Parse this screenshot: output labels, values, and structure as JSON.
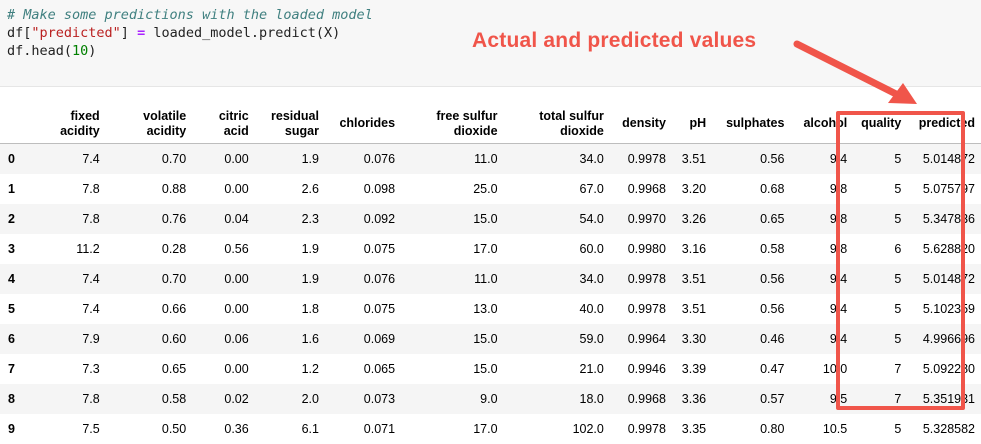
{
  "code": {
    "line1": "# Make some predictions with the loaded model",
    "line2_a": "df[",
    "line2_str": "\"predicted\"",
    "line2_b": "] ",
    "line2_op": "=",
    "line2_c": " loaded_model.predict(X)",
    "line3_a": "df.head(",
    "line3_num": "10",
    "line3_b": ")"
  },
  "annotation": {
    "label": "Actual and predicted values",
    "color": "#f0554a"
  },
  "table": {
    "columns": [
      [
        "fixed",
        "acidity"
      ],
      [
        "volatile",
        "acidity"
      ],
      [
        "citric",
        "acid"
      ],
      [
        "residual",
        "sugar"
      ],
      [
        "",
        "chlorides"
      ],
      [
        "free sulfur",
        "dioxide"
      ],
      [
        "total sulfur",
        "dioxide"
      ],
      [
        "",
        "density"
      ],
      [
        "",
        "pH"
      ],
      [
        "",
        "sulphates"
      ],
      [
        "",
        "alcohol"
      ],
      [
        "",
        "quality"
      ],
      [
        "",
        "predicted"
      ]
    ],
    "rows": [
      [
        "0",
        "7.4",
        "0.70",
        "0.00",
        "1.9",
        "0.076",
        "11.0",
        "34.0",
        "0.9978",
        "3.51",
        "0.56",
        "9.4",
        "5",
        "5.014872"
      ],
      [
        "1",
        "7.8",
        "0.88",
        "0.00",
        "2.6",
        "0.098",
        "25.0",
        "67.0",
        "0.9968",
        "3.20",
        "0.68",
        "9.8",
        "5",
        "5.075797"
      ],
      [
        "2",
        "7.8",
        "0.76",
        "0.04",
        "2.3",
        "0.092",
        "15.0",
        "54.0",
        "0.9970",
        "3.26",
        "0.65",
        "9.8",
        "5",
        "5.347836"
      ],
      [
        "3",
        "11.2",
        "0.28",
        "0.56",
        "1.9",
        "0.075",
        "17.0",
        "60.0",
        "0.9980",
        "3.16",
        "0.58",
        "9.8",
        "6",
        "5.628820"
      ],
      [
        "4",
        "7.4",
        "0.70",
        "0.00",
        "1.9",
        "0.076",
        "11.0",
        "34.0",
        "0.9978",
        "3.51",
        "0.56",
        "9.4",
        "5",
        "5.014872"
      ],
      [
        "5",
        "7.4",
        "0.66",
        "0.00",
        "1.8",
        "0.075",
        "13.0",
        "40.0",
        "0.9978",
        "3.51",
        "0.56",
        "9.4",
        "5",
        "5.102359"
      ],
      [
        "6",
        "7.9",
        "0.60",
        "0.06",
        "1.6",
        "0.069",
        "15.0",
        "59.0",
        "0.9964",
        "3.30",
        "0.46",
        "9.4",
        "5",
        "4.996696"
      ],
      [
        "7",
        "7.3",
        "0.65",
        "0.00",
        "1.2",
        "0.065",
        "15.0",
        "21.0",
        "0.9946",
        "3.39",
        "0.47",
        "10.0",
        "7",
        "5.092280"
      ],
      [
        "8",
        "7.8",
        "0.58",
        "0.02",
        "2.0",
        "0.073",
        "9.0",
        "18.0",
        "0.9968",
        "3.36",
        "0.57",
        "9.5",
        "7",
        "5.351931"
      ],
      [
        "9",
        "7.5",
        "0.50",
        "0.36",
        "6.1",
        "0.071",
        "17.0",
        "102.0",
        "0.9978",
        "3.35",
        "0.80",
        "10.5",
        "5",
        "5.328582"
      ]
    ]
  }
}
